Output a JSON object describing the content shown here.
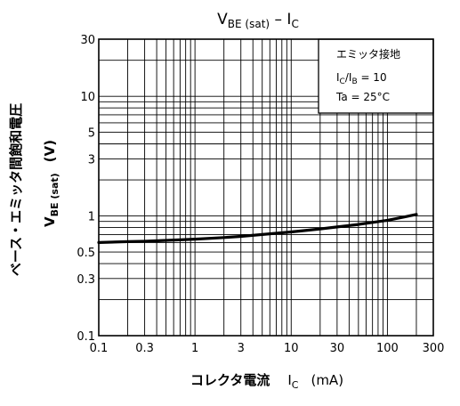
{
  "chart_data": {
    "type": "line",
    "title": {
      "main": "V",
      "sub1": "BE (sat)",
      "dash": " – I",
      "sub2": "C"
    },
    "x_scale": "log",
    "y_scale": "log",
    "xlim": [
      0.1,
      300
    ],
    "ylim": [
      0.1,
      30
    ],
    "x_ticks": [
      {
        "value": 0.1,
        "label": "0.1"
      },
      {
        "value": 0.3,
        "label": "0.3"
      },
      {
        "value": 1,
        "label": "1"
      },
      {
        "value": 3,
        "label": "3"
      },
      {
        "value": 10,
        "label": "10"
      },
      {
        "value": 30,
        "label": "30"
      },
      {
        "value": 100,
        "label": "100"
      },
      {
        "value": 300,
        "label": "300"
      }
    ],
    "y_ticks": [
      {
        "value": 0.1,
        "label": "0.1"
      },
      {
        "value": 0.3,
        "label": "0.3"
      },
      {
        "value": 0.5,
        "label": "0.5"
      },
      {
        "value": 1,
        "label": "1"
      },
      {
        "value": 3,
        "label": "3"
      },
      {
        "value": 5,
        "label": "5"
      },
      {
        "value": 10,
        "label": "10"
      },
      {
        "value": 30,
        "label": "30"
      }
    ],
    "x_grid": [
      0.1,
      0.2,
      0.3,
      0.4,
      0.5,
      0.6,
      0.7,
      0.8,
      0.9,
      1,
      2,
      3,
      4,
      5,
      6,
      7,
      8,
      9,
      10,
      20,
      30,
      40,
      50,
      60,
      70,
      80,
      90,
      100,
      200,
      300
    ],
    "y_grid": [
      0.1,
      0.2,
      0.3,
      0.4,
      0.5,
      0.6,
      0.7,
      0.8,
      0.9,
      1,
      2,
      3,
      4,
      5,
      6,
      7,
      8,
      9,
      10,
      20,
      30
    ],
    "xlabel": {
      "main": "コレクタ電流",
      "symbol": "I",
      "sub": "C",
      "unit": "(mA)"
    },
    "ylabel": {
      "line1": "ベース・エミッタ間飽和電圧",
      "symbol": "V",
      "sub": "BE (sat)",
      "unit": "(V)"
    },
    "legend": {
      "position": "top-right",
      "line1": "エミッタ接地",
      "line2": {
        "a": "I",
        "a_sub": "C",
        "mid": "/I",
        "b_sub": "B",
        "rest": " = 10"
      },
      "line3": "Ta = 25°C"
    },
    "grid": true,
    "series": [
      {
        "x": [
          0.1,
          0.2,
          0.3,
          0.5,
          1,
          2,
          3,
          5,
          10,
          20,
          30,
          50,
          100,
          150,
          200
        ],
        "y": [
          0.6,
          0.61,
          0.615,
          0.625,
          0.64,
          0.66,
          0.675,
          0.7,
          0.735,
          0.78,
          0.81,
          0.85,
          0.92,
          0.98,
          1.03
        ]
      }
    ]
  }
}
